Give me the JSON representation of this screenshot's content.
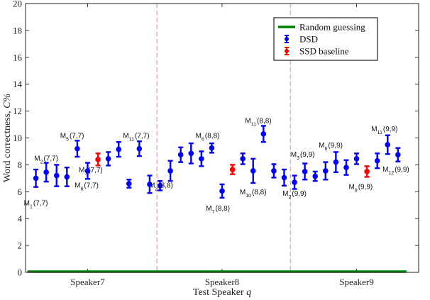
{
  "chart_data": {
    "type": "scatter",
    "title": "",
    "xlabel_main": "Test Speaker ",
    "xlabel_var": "q",
    "ylabel_main": "Word correctness, ",
    "ylabel_var": "C%",
    "ylim": [
      0,
      20
    ],
    "yticks": [
      0,
      2,
      4,
      6,
      8,
      10,
      12,
      14,
      16,
      18,
      20
    ],
    "xlim": [
      0,
      38
    ],
    "categories": [
      {
        "label": "Speaker7",
        "x": 6
      },
      {
        "label": "Speaker8",
        "x": 19
      },
      {
        "label": "Speaker9",
        "x": 32
      }
    ],
    "separators": [
      12.7,
      25.6
    ],
    "random_guessing": 0,
    "colors": {
      "dsd": "#0000ff",
      "ssd": "#ff0000",
      "random": "#008000",
      "separator": "#f08080"
    },
    "legend": {
      "placement": "top-right",
      "entries": [
        {
          "label": "Random guessing",
          "kind": "line",
          "color": "#008000"
        },
        {
          "label": "DSD",
          "kind": "errorbar",
          "color": "#0000ff"
        },
        {
          "label": "SSD baseline",
          "kind": "errorbar",
          "color": "#ff0000"
        }
      ]
    },
    "series": [
      {
        "name": "DSD",
        "color": "#0000ff",
        "points": [
          {
            "x": 1,
            "y": 7.0,
            "err": 0.65
          },
          {
            "x": 2,
            "y": 7.45,
            "err": 0.7
          },
          {
            "x": 3,
            "y": 7.2,
            "err": 0.8
          },
          {
            "x": 4,
            "y": 7.1,
            "err": 0.7
          },
          {
            "x": 5,
            "y": 9.2,
            "err": 0.6
          },
          {
            "x": 6,
            "y": 7.55,
            "err": 0.6
          },
          {
            "x": 8,
            "y": 8.45,
            "err": 0.5
          },
          {
            "x": 9,
            "y": 9.15,
            "err": 0.55
          },
          {
            "x": 10,
            "y": 6.6,
            "err": 0.3
          },
          {
            "x": 11,
            "y": 9.2,
            "err": 0.55
          },
          {
            "x": 12,
            "y": 6.55,
            "err": 0.65
          },
          {
            "x": 13,
            "y": 6.45,
            "err": 0.35
          },
          {
            "x": 14,
            "y": 7.55,
            "err": 0.75
          },
          {
            "x": 15,
            "y": 8.75,
            "err": 0.55
          },
          {
            "x": 16,
            "y": 8.85,
            "err": 0.75
          },
          {
            "x": 17,
            "y": 8.45,
            "err": 0.55
          },
          {
            "x": 18,
            "y": 9.25,
            "err": 0.35
          },
          {
            "x": 19,
            "y": 6.05,
            "err": 0.5
          },
          {
            "x": 21,
            "y": 8.45,
            "err": 0.4
          },
          {
            "x": 22,
            "y": 7.55,
            "err": 0.9
          },
          {
            "x": 23,
            "y": 10.3,
            "err": 0.6
          },
          {
            "x": 24,
            "y": 7.55,
            "err": 0.5
          },
          {
            "x": 25,
            "y": 7.05,
            "err": 0.6
          },
          {
            "x": 26,
            "y": 6.7,
            "err": 0.5
          },
          {
            "x": 27,
            "y": 7.5,
            "err": 0.6
          },
          {
            "x": 28,
            "y": 7.15,
            "err": 0.35
          },
          {
            "x": 29,
            "y": 7.55,
            "err": 0.65
          },
          {
            "x": 30,
            "y": 8.2,
            "err": 0.75
          },
          {
            "x": 31,
            "y": 7.8,
            "err": 0.55
          },
          {
            "x": 32,
            "y": 8.45,
            "err": 0.4
          },
          {
            "x": 34,
            "y": 8.3,
            "err": 0.55
          },
          {
            "x": 35,
            "y": 9.5,
            "err": 0.7
          },
          {
            "x": 36,
            "y": 8.75,
            "err": 0.5
          }
        ]
      },
      {
        "name": "SSD baseline",
        "color": "#ff0000",
        "points": [
          {
            "x": 7,
            "y": 8.4,
            "err": 0.45
          },
          {
            "x": 20,
            "y": 7.65,
            "err": 0.35
          },
          {
            "x": 33,
            "y": 7.5,
            "err": 0.4
          }
        ]
      }
    ],
    "annotations": [
      {
        "main": "M",
        "sub": "1",
        "rest": "(7,7)",
        "x": 1.0,
        "y": 5.0
      },
      {
        "main": "M",
        "sub": "2",
        "rest": "(7,7)",
        "x": 2.0,
        "y": 8.3
      },
      {
        "main": "M",
        "sub": "5",
        "rest": "(7,7)",
        "x": 4.5,
        "y": 10.0
      },
      {
        "main": "M",
        "sub": "7",
        "rest": "(7,7)",
        "x": 6.3,
        "y": 7.45
      },
      {
        "main": "M",
        "sub": "6",
        "rest": "(7,7)",
        "x": 5.9,
        "y": 6.3
      },
      {
        "main": "M",
        "sub": "11",
        "rest": "(7,7)",
        "x": 10.7,
        "y": 10.0
      },
      {
        "main": "M",
        "sub": "2",
        "rest": "(8,8)",
        "x": 13.1,
        "y": 6.3
      },
      {
        "main": "M",
        "sub": "6",
        "rest": "(8,8)",
        "x": 17.6,
        "y": 10.0
      },
      {
        "main": "M",
        "sub": "7",
        "rest": "(8,8)",
        "x": 18.6,
        "y": 4.6
      },
      {
        "main": "M",
        "sub": "11",
        "rest": "(8,8)",
        "x": 22.5,
        "y": 11.1
      },
      {
        "main": "M",
        "sub": "10",
        "rest": "(8,8)",
        "x": 22.0,
        "y": 5.8
      },
      {
        "main": "M",
        "sub": "2",
        "rest": "(9,9)",
        "x": 26.0,
        "y": 5.7
      },
      {
        "main": "M",
        "sub": "3",
        "rest": "(9,9)",
        "x": 26.8,
        "y": 8.6
      },
      {
        "main": "M",
        "sub": "6",
        "rest": "(9,9)",
        "x": 29.5,
        "y": 9.3
      },
      {
        "main": "M",
        "sub": "9",
        "rest": "(9,9)",
        "x": 32.4,
        "y": 6.2
      },
      {
        "main": "M",
        "sub": "11",
        "rest": "(9,9)",
        "x": 34.7,
        "y": 10.5
      },
      {
        "main": "M",
        "sub": "12",
        "rest": "(9,9)",
        "x": 35.8,
        "y": 7.5
      }
    ]
  }
}
